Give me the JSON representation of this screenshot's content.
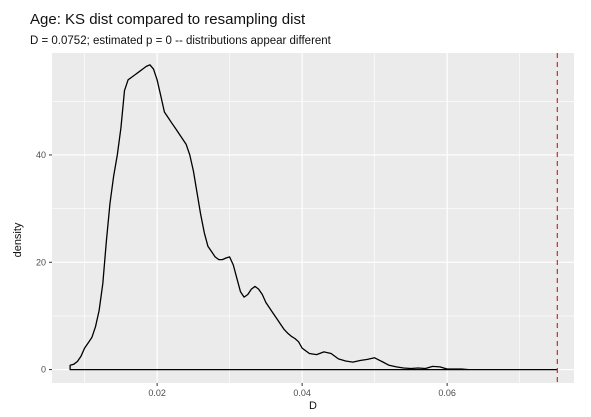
{
  "chart_data": {
    "type": "line",
    "title": "Age: KS dist compared to resampling dist",
    "subtitle": "D = 0.0752; estimated p = 0 -- distributions appear different",
    "xlabel": "D",
    "ylabel": "density",
    "xlim": [
      0.0055,
      0.0775
    ],
    "ylim": [
      -2.5,
      59
    ],
    "x_ticks": [
      0.02,
      0.04,
      0.06
    ],
    "x_tick_labels": [
      "0.02",
      "0.04",
      "0.06"
    ],
    "y_ticks": [
      0,
      20,
      40
    ],
    "y_tick_labels": [
      "0",
      "20",
      "40"
    ],
    "grid": true,
    "reference_line": {
      "x": 0.0752,
      "style": "dashed",
      "color": "#d62728"
    },
    "colors": {
      "panel": "#ebebeb",
      "grid": "#ffffff",
      "line": "#000000"
    },
    "series": [
      {
        "x": [
          0.008,
          0.0085,
          0.009,
          0.0095,
          0.01,
          0.0105,
          0.011,
          0.0115,
          0.012,
          0.0125,
          0.013,
          0.0135,
          0.014,
          0.0145,
          0.015,
          0.0155,
          0.016,
          0.0165,
          0.017,
          0.0175,
          0.018,
          0.0185,
          0.019,
          0.0195,
          0.02,
          0.0205,
          0.021,
          0.0215,
          0.022,
          0.0225,
          0.023,
          0.0235,
          0.024,
          0.0245,
          0.025,
          0.0255,
          0.026,
          0.0265,
          0.027,
          0.0275,
          0.028,
          0.0285,
          0.029,
          0.0295,
          0.03,
          0.0305,
          0.031,
          0.0315,
          0.032,
          0.0325,
          0.033,
          0.0335,
          0.034,
          0.0345,
          0.035,
          0.0355,
          0.036,
          0.0365,
          0.037,
          0.0375,
          0.038,
          0.0385,
          0.039,
          0.0395,
          0.04,
          0.041,
          0.042,
          0.043,
          0.044,
          0.045,
          0.046,
          0.047,
          0.048,
          0.049,
          0.05,
          0.051,
          0.052,
          0.053,
          0.054,
          0.055,
          0.056,
          0.057,
          0.058,
          0.059,
          0.06,
          0.061,
          0.062,
          0.063,
          0.064,
          0.066,
          0.068,
          0.07,
          0.072,
          0.0752
        ],
        "y": [
          0.8,
          1.0,
          1.5,
          2.5,
          4.0,
          5.0,
          6.0,
          8.0,
          11.0,
          16.0,
          24.0,
          31.0,
          36.0,
          40.0,
          45.0,
          52.0,
          54.0,
          54.5,
          55.0,
          55.5,
          56.0,
          56.5,
          56.8,
          56.0,
          54.0,
          51.0,
          48.0,
          47.0,
          46.0,
          45.0,
          44.0,
          43.0,
          42.0,
          40.0,
          37.0,
          33.0,
          29.0,
          25.5,
          23.0,
          22.0,
          21.0,
          20.5,
          20.5,
          20.8,
          21.0,
          19.5,
          17.0,
          14.5,
          13.5,
          14.0,
          15.0,
          15.5,
          15.0,
          14.0,
          12.5,
          11.5,
          10.5,
          9.5,
          8.5,
          7.5,
          6.8,
          6.2,
          5.8,
          5.2,
          4.0,
          3.0,
          2.8,
          3.3,
          3.0,
          2.0,
          1.6,
          1.4,
          1.7,
          1.9,
          2.2,
          1.5,
          0.8,
          0.5,
          0.3,
          0.2,
          0.3,
          0.2,
          0.6,
          0.5,
          0.1,
          0.1,
          0.1,
          0.0,
          0.0,
          0.0,
          0.0,
          0.0,
          0.0,
          0.0
        ]
      }
    ]
  }
}
